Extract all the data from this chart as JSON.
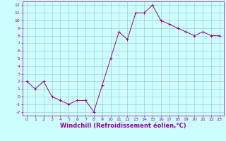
{
  "x": [
    0,
    1,
    2,
    3,
    4,
    5,
    6,
    7,
    8,
    9,
    10,
    11,
    12,
    13,
    14,
    15,
    16,
    17,
    18,
    19,
    20,
    21,
    22,
    23
  ],
  "y": [
    2,
    1,
    2,
    0,
    -0.5,
    -1,
    -0.5,
    -0.5,
    -2,
    1.5,
    5,
    8.5,
    7.5,
    11,
    11,
    12,
    10,
    9.5,
    9,
    8.5,
    8,
    8.5,
    8,
    8
  ],
  "line_color": "#990099",
  "marker": "+",
  "marker_size": 2.5,
  "marker_linewidth": 0.7,
  "bg_color": "#ccffff",
  "grid_color": "#aabbbb",
  "xlabel": "Windchill (Refroidissement éolien,°C)",
  "xlabel_color": "#990099",
  "ylabel_ticks": [
    -2,
    -1,
    0,
    1,
    2,
    3,
    4,
    5,
    6,
    7,
    8,
    9,
    10,
    11,
    12
  ],
  "xticks": [
    0,
    1,
    2,
    3,
    4,
    5,
    6,
    7,
    8,
    9,
    10,
    11,
    12,
    13,
    14,
    15,
    16,
    17,
    18,
    19,
    20,
    21,
    22,
    23
  ],
  "ylim": [
    -2.5,
    12.5
  ],
  "xlim": [
    -0.5,
    23.5
  ],
  "tick_color": "#990099",
  "tick_fontsize": 4.5,
  "xlabel_fontsize": 6,
  "spine_color": "#990099",
  "linewidth": 0.7
}
